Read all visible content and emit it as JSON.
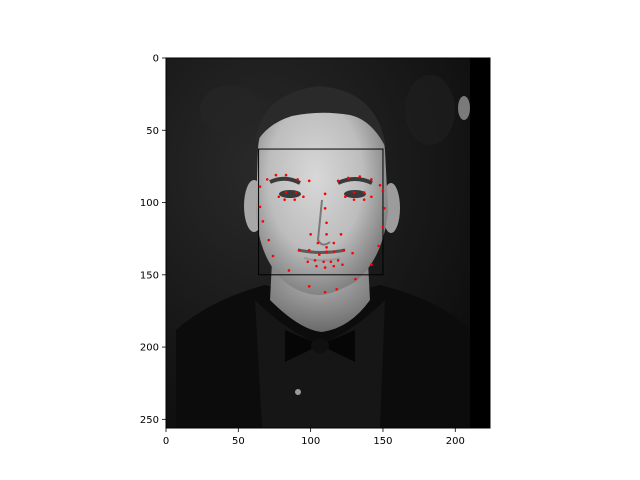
{
  "figure": {
    "image_description": "Grayscale close-up portrait photo of a young man with short hair in a dark shirt and bow tie against a dark background",
    "x_ticks": [
      "0",
      "50",
      "100",
      "150",
      "200"
    ],
    "y_ticks": [
      "0",
      "50",
      "100",
      "150",
      "200",
      "250"
    ],
    "x_tick_values": [
      0,
      50,
      100,
      150,
      200
    ],
    "y_tick_values": [
      0,
      50,
      100,
      150,
      200,
      250
    ],
    "x_range": [
      0,
      224
    ],
    "y_range": [
      0,
      256
    ],
    "y_axis_inverted": true,
    "face_box": {
      "x0": 64,
      "y0": 63,
      "x1": 150,
      "y1": 150,
      "color": "#000000"
    },
    "landmark_color": "#ff0000",
    "landmarks": [
      [
        65,
        89
      ],
      [
        65,
        103
      ],
      [
        67,
        113
      ],
      [
        71,
        126
      ],
      [
        74,
        137
      ],
      [
        85,
        147
      ],
      [
        99,
        158
      ],
      [
        110,
        162
      ],
      [
        118,
        160
      ],
      [
        131,
        153
      ],
      [
        142,
        143
      ],
      [
        147,
        130
      ],
      [
        150,
        117
      ],
      [
        151,
        104
      ],
      [
        150,
        92
      ],
      [
        70,
        84
      ],
      [
        76,
        81
      ],
      [
        83,
        81
      ],
      [
        91,
        84
      ],
      [
        99,
        85
      ],
      [
        119,
        85
      ],
      [
        126,
        83
      ],
      [
        134,
        82
      ],
      [
        142,
        84
      ],
      [
        148,
        88
      ],
      [
        110,
        94
      ],
      [
        110,
        104
      ],
      [
        111,
        114
      ],
      [
        111,
        122
      ],
      [
        100,
        122
      ],
      [
        105,
        128
      ],
      [
        111,
        131
      ],
      [
        116,
        128
      ],
      [
        121,
        122
      ],
      [
        78,
        96
      ],
      [
        83,
        93
      ],
      [
        90,
        93
      ],
      [
        95,
        96
      ],
      [
        89,
        98
      ],
      [
        82,
        98
      ],
      [
        124,
        96
      ],
      [
        130,
        93
      ],
      [
        137,
        93
      ],
      [
        142,
        96
      ],
      [
        137,
        98
      ],
      [
        130,
        98
      ],
      [
        92,
        133
      ],
      [
        99,
        133
      ],
      [
        106,
        136
      ],
      [
        111,
        134
      ],
      [
        116,
        134
      ],
      [
        123,
        133
      ],
      [
        129,
        135
      ],
      [
        122,
        143
      ],
      [
        116,
        144
      ],
      [
        110,
        145
      ],
      [
        104,
        144
      ],
      [
        98,
        141
      ],
      [
        103,
        140
      ],
      [
        109,
        141
      ],
      [
        114,
        141
      ],
      [
        119,
        140
      ]
    ]
  }
}
